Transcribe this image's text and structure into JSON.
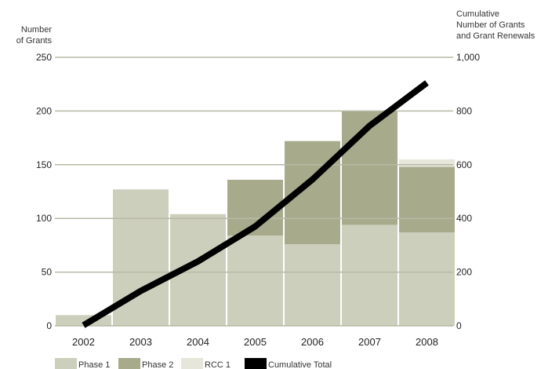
{
  "chart_data": {
    "type": "bar",
    "subtype": "stacked-bar-with-line",
    "categories": [
      "2002",
      "2003",
      "2004",
      "2005",
      "2006",
      "2007",
      "2008"
    ],
    "y_left": {
      "label_lines": [
        "Number",
        "of Grants"
      ],
      "ylim": [
        0,
        250
      ],
      "ticks": [
        0,
        50,
        100,
        150,
        200,
        250
      ],
      "tick_labels": [
        "0",
        "50",
        "100",
        "150",
        "200",
        "250"
      ]
    },
    "y_right": {
      "label_lines": [
        "Cumulative",
        "Number of Grants",
        "and Grant Renewals"
      ],
      "ylim": [
        0,
        1000
      ],
      "ticks": [
        0,
        200,
        400,
        600,
        800,
        1000
      ],
      "tick_labels": [
        "0",
        "200",
        "400",
        "600",
        "800",
        "1,000"
      ]
    },
    "series": [
      {
        "name": "Phase 1",
        "axis": "left",
        "color": "#cdcfbd",
        "values": [
          10,
          127,
          104,
          84,
          76,
          94,
          87
        ]
      },
      {
        "name": "Phase 2",
        "axis": "left",
        "color": "#a7ab8c",
        "values": [
          0,
          0,
          0,
          52,
          96,
          106,
          61
        ]
      },
      {
        "name": "RCC 1",
        "axis": "left",
        "color": "#e6e6da",
        "values": [
          0,
          0,
          0,
          0,
          0,
          0,
          7
        ]
      },
      {
        "name": "Cumulative Total",
        "axis": "right",
        "type": "line",
        "color": "#000000",
        "values": [
          2,
          130,
          240,
          370,
          545,
          745,
          905
        ]
      }
    ],
    "grid": true,
    "legend": "bottom-left"
  }
}
